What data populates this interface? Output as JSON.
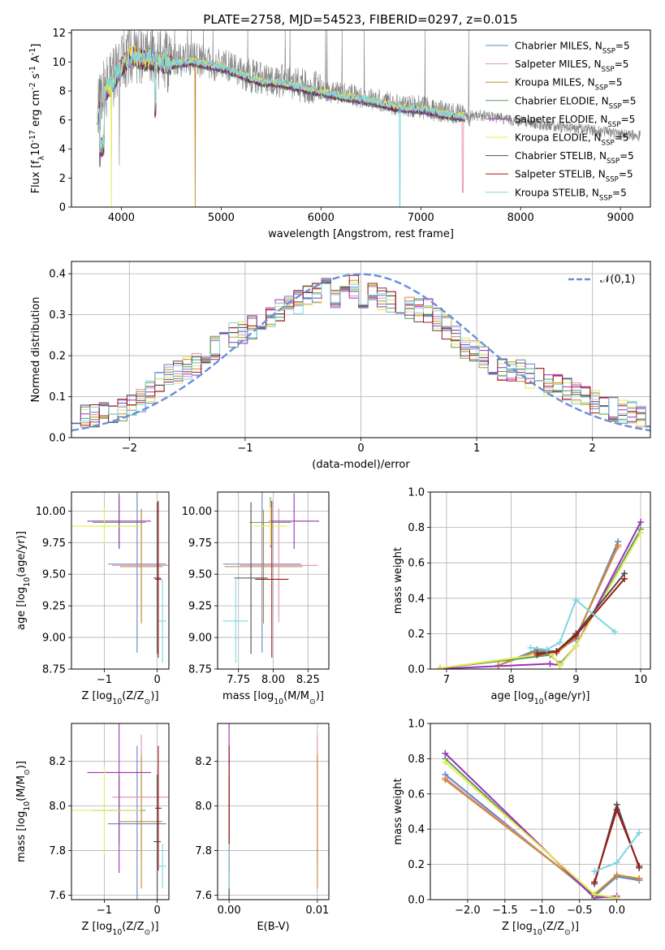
{
  "figure_title": "PLATE=2758, MJD=54523, FIBERID=0297, z=0.015",
  "legend_spectrum": [
    "Chabrier MILES, N$_{SSP}$=5",
    "Salpeter MILES, N$_{SSP}$=5",
    "Kroupa MILES, N$_{SSP}$=5",
    "Chabrier ELODIE, N$_{SSP}$=5",
    "Salpeter ELODIE, N$_{SSP}$=5",
    "Kroupa ELODIE, N$_{SSP}$=5",
    "Chabrier STELIB, N$_{SSP}$=5",
    "Salpeter STELIB, N$_{SSP}$=5",
    "Kroupa STELIB, N$_{SSP}$=5"
  ],
  "series_colors": [
    "#5f86c6",
    "#e58fb2",
    "#c78b2e",
    "#5a9a5a",
    "#9b30b8",
    "#e6ea55",
    "#4d4d4d",
    "#a01818",
    "#7fd6e0"
  ],
  "normal_label": "$\\mathcal{N}(0,1)$",
  "normal_color": "#6a8fd8",
  "chart_data": [
    {
      "id": "spectrum",
      "type": "line",
      "title": "PLATE=2758, MJD=54523, FIBERID=0297, z=0.015",
      "xlabel": "wavelength [Angstrom, rest frame]",
      "ylabel": "Flux [f$_\\lambda$10$^{-17}$ erg cm$^{-2}$ s$^{-1}$ A$^{-1}$]",
      "xlim": [
        3500,
        9300
      ],
      "ylim": [
        0,
        12.2
      ],
      "xticks": [
        4000,
        5000,
        6000,
        7000,
        8000,
        9000
      ],
      "yticks": [
        0,
        2,
        4,
        6,
        8,
        10,
        12
      ],
      "grid": false,
      "legend": "upper right",
      "data_continuum": {
        "x": [
          3760,
          3800,
          3900,
          4000,
          4100,
          4200,
          4300,
          4500,
          4700,
          4900,
          5000,
          5200,
          5400,
          5600,
          5800,
          6000,
          6200,
          6400,
          6600,
          6800,
          7000,
          7200,
          7400,
          7600,
          7800,
          8000,
          8200,
          8400,
          8600,
          8800,
          9000,
          9200
        ],
        "y": [
          6.3,
          7.8,
          8.6,
          9.9,
          10.6,
          10.4,
          10.3,
          10.0,
          10.2,
          9.9,
          9.8,
          9.3,
          8.8,
          8.7,
          8.4,
          8.1,
          7.8,
          7.6,
          7.3,
          7.0,
          6.9,
          6.6,
          6.4,
          6.3,
          6.1,
          5.9,
          5.7,
          5.5,
          5.4,
          5.2,
          5.0,
          4.9
        ]
      },
      "model_range": [
        3760,
        7440
      ]
    },
    {
      "id": "residuals",
      "type": "line",
      "xlabel": "(data-model)/error",
      "ylabel": "Normed distribution",
      "xlim": [
        -2.5,
        2.5
      ],
      "ylim": [
        0,
        0.43
      ],
      "xticks": [
        -2,
        -1,
        0,
        1,
        2
      ],
      "yticks": [
        0.0,
        0.1,
        0.2,
        0.3,
        0.4
      ],
      "grid": true,
      "legend": "upper right",
      "base_histogram": [
        0.05,
        0.05,
        0.055,
        0.06,
        0.065,
        0.07,
        0.075,
        0.09,
        0.11,
        0.13,
        0.15,
        0.16,
        0.17,
        0.18,
        0.19,
        0.22,
        0.24,
        0.25,
        0.26,
        0.27,
        0.28,
        0.3,
        0.31,
        0.33,
        0.33,
        0.35,
        0.35,
        0.36,
        0.34,
        0.36,
        0.37,
        0.34,
        0.36,
        0.34,
        0.33,
        0.33,
        0.32,
        0.31,
        0.31,
        0.29,
        0.27,
        0.25,
        0.22,
        0.21,
        0.2,
        0.18,
        0.17,
        0.16,
        0.16,
        0.15,
        0.14,
        0.13,
        0.13,
        0.12,
        0.11,
        0.1,
        0.09,
        0.08,
        0.07,
        0.065,
        0.06,
        0.055,
        0.05
      ],
      "bin_start": -2.5,
      "bin_width": 0.08
    },
    {
      "id": "age_vs_Z",
      "type": "scatter",
      "xlabel": "Z [log$_{10}$(Z/Z$_\\odot$)]",
      "ylabel": "age  [log$_{10}$(age/yr)]",
      "xlim": [
        -1.62,
        0.22
      ],
      "ylim": [
        8.75,
        10.15
      ],
      "xticks": [
        -1,
        0
      ],
      "yticks": [
        8.75,
        9.0,
        9.25,
        9.5,
        9.75,
        10.0
      ],
      "grid": true,
      "points": [
        {
          "x": -0.38,
          "y": 9.58,
          "xerr": 0.55,
          "yerr": 0.7
        },
        {
          "x": -0.3,
          "y": 9.57,
          "xerr": 0.55,
          "yerr": 0.45
        },
        {
          "x": -0.3,
          "y": 9.56,
          "xerr": 0.4,
          "yerr": 0.45
        },
        {
          "x": -0.72,
          "y": 9.91,
          "xerr": 0.5,
          "yerr": 0.2
        },
        {
          "x": -0.72,
          "y": 9.92,
          "xerr": 0.6,
          "yerr": 0.22
        },
        {
          "x": -1.0,
          "y": 9.88,
          "xerr": 0.7,
          "yerr": 0.15
        },
        {
          "x": 0.0,
          "y": 9.47,
          "xerr": 0.07,
          "yerr": 0.6
        },
        {
          "x": 0.02,
          "y": 9.46,
          "xerr": 0.06,
          "yerr": 0.62
        },
        {
          "x": 0.1,
          "y": 9.13,
          "xerr": 0.07,
          "yerr": 0.33
        }
      ]
    },
    {
      "id": "age_vs_mass",
      "type": "scatter",
      "xlabel": "mass [log$_{10}$(M/M$_\\odot$)]",
      "ylabel": "",
      "xlim": [
        7.6,
        8.4
      ],
      "ylim": [
        8.75,
        10.15
      ],
      "xticks": [
        7.75,
        8.0,
        8.25
      ],
      "yticks": [
        8.75,
        9.0,
        9.25,
        9.5,
        9.75,
        10.0
      ],
      "grid": true,
      "points": [
        {
          "x": 7.92,
          "y": 9.58,
          "xerr": 0.28,
          "yerr": 0.7
        },
        {
          "x": 8.04,
          "y": 9.57,
          "xerr": 0.28,
          "yerr": 0.45
        },
        {
          "x": 7.93,
          "y": 9.56,
          "xerr": 0.28,
          "yerr": 0.45
        },
        {
          "x": 7.98,
          "y": 9.91,
          "xerr": 0.15,
          "yerr": 0.2
        },
        {
          "x": 8.15,
          "y": 9.92,
          "xerr": 0.18,
          "yerr": 0.22
        },
        {
          "x": 7.98,
          "y": 9.88,
          "xerr": 0.12,
          "yerr": 0.15
        },
        {
          "x": 7.84,
          "y": 9.47,
          "xerr": 0.12,
          "yerr": 0.6
        },
        {
          "x": 7.99,
          "y": 9.46,
          "xerr": 0.12,
          "yerr": 0.62
        },
        {
          "x": 7.73,
          "y": 9.13,
          "xerr": 0.09,
          "yerr": 0.33
        }
      ]
    },
    {
      "id": "weight_vs_age",
      "type": "line",
      "xlabel": "age  [log$_{10}$(age/yr)]",
      "ylabel": "mass weight",
      "xlim": [
        6.75,
        10.15
      ],
      "ylim": [
        0,
        1.0
      ],
      "xticks": [
        7,
        8,
        9,
        10
      ],
      "yticks": [
        0.0,
        0.2,
        0.4,
        0.6,
        0.8,
        1.0
      ],
      "grid": true,
      "series": [
        {
          "x": [
            7.8,
            8.4,
            8.7,
            9.0,
            9.65
          ],
          "y": [
            0.02,
            0.11,
            0.1,
            0.17,
            0.72
          ]
        },
        {
          "x": [
            7.8,
            8.4,
            8.7,
            9.0,
            9.65
          ],
          "y": [
            0.02,
            0.1,
            0.09,
            0.18,
            0.69
          ]
        },
        {
          "x": [
            7.8,
            8.4,
            8.7,
            9.0,
            9.65
          ],
          "y": [
            0.02,
            0.1,
            0.09,
            0.18,
            0.7
          ]
        },
        {
          "x": [
            6.9,
            8.6,
            8.75,
            9.0,
            10.0
          ],
          "y": [
            0.005,
            0.08,
            0.03,
            0.13,
            0.79
          ]
        },
        {
          "x": [
            6.9,
            8.6,
            8.75,
            9.0,
            10.0
          ],
          "y": [
            0.002,
            0.03,
            0.02,
            0.13,
            0.83
          ]
        },
        {
          "x": [
            6.9,
            8.6,
            8.75,
            9.0,
            10.0
          ],
          "y": [
            0.006,
            0.09,
            0.02,
            0.13,
            0.77
          ]
        },
        {
          "x": [
            8.4,
            8.7,
            9.0,
            9.75
          ],
          "y": [
            0.09,
            0.1,
            0.2,
            0.54
          ]
        },
        {
          "x": [
            8.4,
            8.7,
            9.0,
            9.75
          ],
          "y": [
            0.08,
            0.1,
            0.19,
            0.51
          ]
        },
        {
          "x": [
            8.3,
            8.55,
            8.75,
            9.0,
            9.6
          ],
          "y": [
            0.12,
            0.11,
            0.15,
            0.39,
            0.21
          ]
        }
      ]
    },
    {
      "id": "mass_vs_Z",
      "type": "scatter",
      "xlabel": "Z [log$_{10}$(Z/Z$_\\odot$)]",
      "ylabel": "mass [log$_{10}$(M/M$_\\odot$)]",
      "xlim": [
        -1.62,
        0.22
      ],
      "ylim": [
        7.58,
        8.37
      ],
      "xticks": [
        -1,
        0
      ],
      "yticks": [
        7.6,
        7.8,
        8.0,
        8.2
      ],
      "grid": true,
      "points": [
        {
          "x": -0.38,
          "y": 7.92,
          "xerr": 0.55,
          "yerr": 0.35
        },
        {
          "x": -0.3,
          "y": 8.04,
          "xerr": 0.55,
          "yerr": 0.28
        },
        {
          "x": -0.3,
          "y": 7.93,
          "xerr": 0.4,
          "yerr": 0.3
        },
        {
          "x": -0.72,
          "y": 7.98,
          "xerr": 0.5,
          "yerr": 0.15
        },
        {
          "x": -0.72,
          "y": 8.15,
          "xerr": 0.6,
          "yerr": 0.45
        },
        {
          "x": -1.0,
          "y": 7.98,
          "xerr": 0.7,
          "yerr": 0.2
        },
        {
          "x": 0.0,
          "y": 7.84,
          "xerr": 0.07,
          "yerr": 0.3
        },
        {
          "x": 0.02,
          "y": 7.99,
          "xerr": 0.06,
          "yerr": 0.28
        },
        {
          "x": 0.1,
          "y": 7.73,
          "xerr": 0.07,
          "yerr": 0.1
        }
      ]
    },
    {
      "id": "mass_vs_ebv",
      "type": "scatter",
      "xlabel": "E(B-V)",
      "ylabel": "",
      "xlim": [
        -0.0013,
        0.0113
      ],
      "ylim": [
        7.58,
        8.37
      ],
      "xticks": [
        0.0,
        0.01
      ],
      "yticks": [
        7.6,
        7.8,
        8.0,
        8.2
      ],
      "grid": true,
      "points": [
        {
          "x": 0.0,
          "y": 7.92,
          "yerr": 0.35
        },
        {
          "x": 0.01,
          "y": 8.04,
          "yerr": 0.28
        },
        {
          "x": 0.01,
          "y": 7.93,
          "yerr": 0.3
        },
        {
          "x": 0.0,
          "y": 7.98,
          "yerr": 0.15
        },
        {
          "x": 0.0,
          "y": 8.15,
          "yerr": 0.45
        },
        {
          "x": 0.0,
          "y": 7.98,
          "yerr": 0.2
        },
        {
          "x": 0.0,
          "y": 7.84,
          "yerr": 0.3
        },
        {
          "x": 0.0,
          "y": 7.99,
          "yerr": 0.28
        },
        {
          "x": 0.0,
          "y": 7.73,
          "yerr": 0.1
        }
      ]
    },
    {
      "id": "weight_vs_Z",
      "type": "line",
      "xlabel": "Z [log$_{10}$(Z/Z$_\\odot$)]",
      "ylabel": "mass weight",
      "xlim": [
        -2.5,
        0.45
      ],
      "ylim": [
        0,
        1.0
      ],
      "xticks": [
        -2.0,
        -1.5,
        -1.0,
        -0.5,
        0.0
      ],
      "yticks": [
        0.0,
        0.2,
        0.4,
        0.6,
        0.8,
        1.0
      ],
      "grid": true,
      "series": [
        {
          "x": [
            -2.3,
            -0.3,
            0.0,
            0.3
          ],
          "y": [
            0.71,
            0.02,
            0.13,
            0.11
          ]
        },
        {
          "x": [
            -2.3,
            -0.3,
            0.0,
            0.3
          ],
          "y": [
            0.69,
            0.03,
            0.14,
            0.12
          ]
        },
        {
          "x": [
            -2.3,
            -0.3,
            0.0,
            0.3
          ],
          "y": [
            0.68,
            0.03,
            0.14,
            0.12
          ]
        },
        {
          "x": [
            -2.3,
            -0.3,
            0.0
          ],
          "y": [
            0.8,
            0.02,
            0.01
          ]
        },
        {
          "x": [
            -2.3,
            -0.3,
            0.0
          ],
          "y": [
            0.83,
            0.01,
            0.02
          ]
        },
        {
          "x": [
            -2.3,
            -0.3,
            0.0
          ],
          "y": [
            0.78,
            0.03,
            0.01
          ]
        },
        {
          "x": [
            -0.3,
            0.0,
            0.3
          ],
          "y": [
            0.09,
            0.54,
            0.18
          ]
        },
        {
          "x": [
            -0.3,
            0.0,
            0.3
          ],
          "y": [
            0.1,
            0.51,
            0.19
          ]
        },
        {
          "x": [
            -0.3,
            0.0,
            0.3
          ],
          "y": [
            0.16,
            0.21,
            0.38
          ]
        }
      ]
    }
  ]
}
